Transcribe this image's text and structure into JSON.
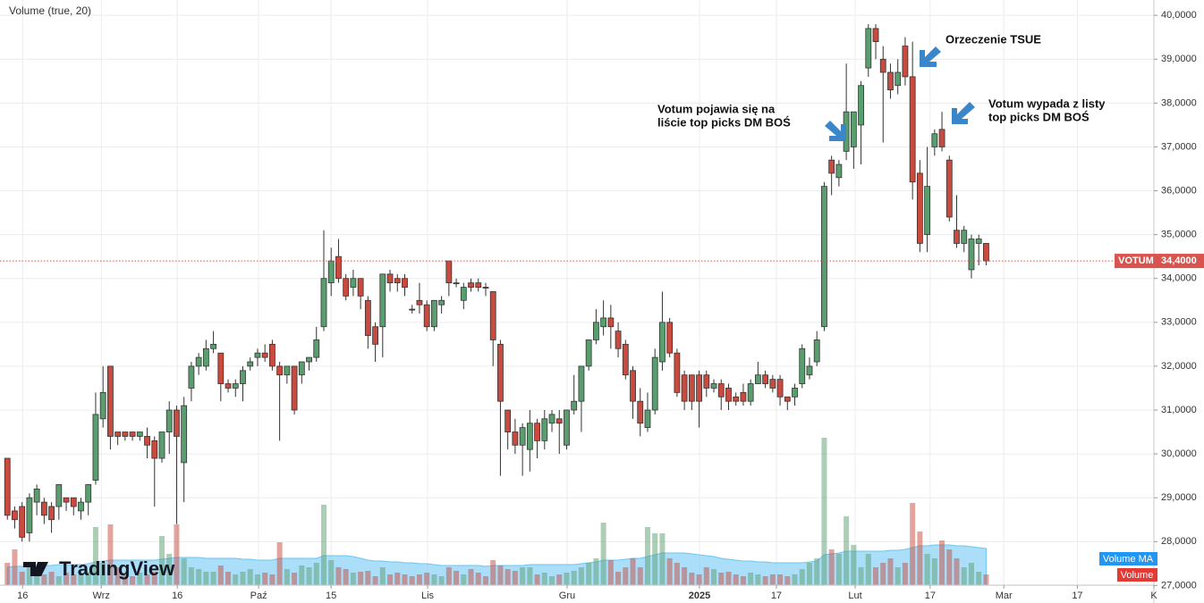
{
  "chart_data": {
    "type": "candlestick",
    "study_label": "Volume (true, 20)",
    "watermark": "TradingView",
    "up_color": "#5a9e70",
    "down_color": "#c94a3e",
    "xlim": [
      -1,
      155.8
    ],
    "xticks": [
      {
        "value": 2.07,
        "label": "16"
      },
      {
        "value": 12.76,
        "label": "Wrz"
      },
      {
        "value": 23.09,
        "label": "16"
      },
      {
        "value": 34.14,
        "label": "Paź"
      },
      {
        "value": 43.99,
        "label": "15"
      },
      {
        "value": 57.1,
        "label": "Lis"
      },
      {
        "value": 76.06,
        "label": "Gru"
      },
      {
        "value": 94.05,
        "label": "2025"
      },
      {
        "value": 104.5,
        "label": "17"
      },
      {
        "value": 115.2,
        "label": "Lut"
      },
      {
        "value": 125.4,
        "label": "17"
      },
      {
        "value": 135.4,
        "label": "Mar"
      },
      {
        "value": 145.4,
        "label": "17"
      },
      {
        "value": 155.8,
        "label": "K"
      }
    ],
    "ylim": [
      26.6,
      40.35
    ],
    "yticks": [
      {
        "value": 27,
        "label": "27,0000"
      },
      {
        "value": 28,
        "label": "28,0000"
      },
      {
        "value": 29,
        "label": "29,0000"
      },
      {
        "value": 30,
        "label": "30,0000"
      },
      {
        "value": 31,
        "label": "31,0000"
      },
      {
        "value": 32,
        "label": "32,0000"
      },
      {
        "value": 33,
        "label": "33,0000"
      },
      {
        "value": 34,
        "label": "34,0000"
      },
      {
        "value": 35,
        "label": "35,0000"
      },
      {
        "value": 36,
        "label": "36,0000"
      },
      {
        "value": 37,
        "label": "37,0000"
      },
      {
        "value": 38,
        "label": "38,0000"
      },
      {
        "value": 39,
        "label": "39,0000"
      },
      {
        "value": 40,
        "label": "40,0000"
      }
    ],
    "grid": true,
    "last_price": {
      "name": "VOTUM",
      "value": 34.4,
      "label": "34,4000",
      "color": "#d9534f"
    },
    "series": [
      {
        "name": "VOTUM",
        "open": [
          29.9,
          28.7,
          28.8,
          28.2,
          28.9,
          28.9,
          28.8,
          28.8,
          29.0,
          29.0,
          28.7,
          28.9,
          29.4,
          30.8,
          32.0,
          30.5,
          30.5,
          30.5,
          30.4,
          30.4,
          30.3,
          29.9,
          30.5,
          31.0,
          29.8,
          31.5,
          32.0,
          32.0,
          32.4,
          32.3,
          31.6,
          31.5,
          31.6,
          32.0,
          32.2,
          32.3,
          32.5,
          32.0,
          31.8,
          32.0,
          31.8,
          32.1,
          32.2,
          32.9,
          33.9,
          34.5,
          34.0,
          33.8,
          34.0,
          33.5,
          32.9,
          32.9,
          34.1,
          34.0,
          34.0,
          33.3,
          33.5,
          33.4,
          32.9,
          33.4,
          34.4,
          33.9,
          33.5,
          33.9,
          33.9,
          33.8,
          33.7,
          32.5,
          31.0,
          30.5,
          30.2,
          30.1,
          30.7,
          30.3,
          30.7,
          30.8,
          30.2,
          31.0,
          31.2,
          32.0,
          32.6,
          32.9,
          33.1,
          32.8,
          32.5,
          31.9,
          31.2,
          30.6,
          31.0,
          32.1,
          33.0,
          32.3,
          31.8,
          31.8,
          31.8,
          31.8,
          31.5,
          31.6,
          31.5,
          31.3,
          31.4,
          31.2,
          31.6,
          31.8,
          31.7,
          31.7,
          31.3,
          31.3,
          31.6,
          31.8,
          32.1,
          32.9,
          36.7,
          36.3,
          36.9,
          37.0,
          37.5,
          38.8,
          39.7,
          39.0,
          38.7,
          38.4,
          39.3,
          38.6,
          36.4,
          35.0,
          37.0,
          37.4,
          36.7,
          35.1,
          34.8,
          34.2,
          34.8,
          34.8
        ],
        "high": [
          29.9,
          28.8,
          28.9,
          29.1,
          29.3,
          29.0,
          28.9,
          29.3,
          29.0,
          29.0,
          29.0,
          29.3,
          31.4,
          32.0,
          32.0,
          30.5,
          30.5,
          30.5,
          30.5,
          30.6,
          30.4,
          30.5,
          31.2,
          31.1,
          31.3,
          32.1,
          32.3,
          32.6,
          32.8,
          32.3,
          31.7,
          31.7,
          32.0,
          32.2,
          32.4,
          32.5,
          32.6,
          32.1,
          32.0,
          32.0,
          32.1,
          32.2,
          32.9,
          35.1,
          34.7,
          34.9,
          34.1,
          34.2,
          34.0,
          33.6,
          33.0,
          34.1,
          34.2,
          34.1,
          34.1,
          33.4,
          33.9,
          33.5,
          33.5,
          33.6,
          34.4,
          34.0,
          33.9,
          34.0,
          34.0,
          33.9,
          33.7,
          32.6,
          31.0,
          30.8,
          30.7,
          31.0,
          30.8,
          31.0,
          31.0,
          31.0,
          31.0,
          31.8,
          32.0,
          32.6,
          33.3,
          33.5,
          33.4,
          33.0,
          32.6,
          32.0,
          31.5,
          31.4,
          32.4,
          33.7,
          33.1,
          32.4,
          31.9,
          31.8,
          31.9,
          31.9,
          31.7,
          31.7,
          31.6,
          31.4,
          31.6,
          31.7,
          32.1,
          31.9,
          31.8,
          31.8,
          31.3,
          31.6,
          32.5,
          32.2,
          32.8,
          36.2,
          36.8,
          36.7,
          38.9,
          37.8,
          38.5,
          39.8,
          39.8,
          39.3,
          38.9,
          39.0,
          39.5,
          39.4,
          36.7,
          37.0,
          37.4,
          37.8,
          36.8,
          35.9,
          35.2,
          35.0,
          35.0,
          34.8
        ],
        "low": [
          28.5,
          28.3,
          28.0,
          28.0,
          28.6,
          28.4,
          28.2,
          28.5,
          28.7,
          28.6,
          28.5,
          28.6,
          29.3,
          30.6,
          30.1,
          30.2,
          30.3,
          30.3,
          30.3,
          29.9,
          28.8,
          29.8,
          30.0,
          28.4,
          28.9,
          31.2,
          31.8,
          31.9,
          32.3,
          31.2,
          31.4,
          31.3,
          31.2,
          31.9,
          32.0,
          32.1,
          31.9,
          30.3,
          31.6,
          30.9,
          31.6,
          31.9,
          32.1,
          32.8,
          33.6,
          33.9,
          33.5,
          33.6,
          33.3,
          32.4,
          32.1,
          32.2,
          33.7,
          33.7,
          33.6,
          33.2,
          33.2,
          32.8,
          32.8,
          33.2,
          33.6,
          33.8,
          33.3,
          33.7,
          33.7,
          33.6,
          32.0,
          29.5,
          30.1,
          30.0,
          29.5,
          29.6,
          29.9,
          30.1,
          30.5,
          30.0,
          30.1,
          30.9,
          30.5,
          31.9,
          32.5,
          32.7,
          32.4,
          32.2,
          31.7,
          30.8,
          30.4,
          30.5,
          30.9,
          31.9,
          32.2,
          31.3,
          31.0,
          31.0,
          30.6,
          31.3,
          31.4,
          31.0,
          31.0,
          31.1,
          31.1,
          31.1,
          31.6,
          31.5,
          31.4,
          31.1,
          31.0,
          31.1,
          31.5,
          31.7,
          32.0,
          32.8,
          35.9,
          36.1,
          36.7,
          36.5,
          36.6,
          38.6,
          39.0,
          37.1,
          38.1,
          38.2,
          38.4,
          35.8,
          34.6,
          34.6,
          36.8,
          36.9,
          35.3,
          34.7,
          34.6,
          34.0,
          34.3,
          34.3
        ],
        "close": [
          28.6,
          28.5,
          28.1,
          29.0,
          29.2,
          28.6,
          28.5,
          29.3,
          28.9,
          28.8,
          28.9,
          29.3,
          30.9,
          31.4,
          30.4,
          30.4,
          30.4,
          30.4,
          30.5,
          30.2,
          29.9,
          30.5,
          31.0,
          30.4,
          31.1,
          32.0,
          32.2,
          32.4,
          32.5,
          31.6,
          31.5,
          31.6,
          31.9,
          32.1,
          32.3,
          32.2,
          32.0,
          31.8,
          32.0,
          31.0,
          32.1,
          32.2,
          32.6,
          34.0,
          34.4,
          34.0,
          33.6,
          34.0,
          33.6,
          32.7,
          32.5,
          34.1,
          33.9,
          33.9,
          33.8,
          33.3,
          33.4,
          32.9,
          33.5,
          33.5,
          33.9,
          33.9,
          33.8,
          33.8,
          33.8,
          33.8,
          32.6,
          31.2,
          30.5,
          30.2,
          30.6,
          30.7,
          30.3,
          30.8,
          30.9,
          30.7,
          31.0,
          31.2,
          32.0,
          32.6,
          33.0,
          33.1,
          32.9,
          32.4,
          31.8,
          31.2,
          30.7,
          31.0,
          32.2,
          33.0,
          32.3,
          31.4,
          31.2,
          31.2,
          31.2,
          31.5,
          31.6,
          31.3,
          31.2,
          31.2,
          31.2,
          31.6,
          31.8,
          31.6,
          31.5,
          31.3,
          31.2,
          31.5,
          32.4,
          32.0,
          32.6,
          36.1,
          36.4,
          36.6,
          37.8,
          37.8,
          38.4,
          39.7,
          39.4,
          38.7,
          38.3,
          38.7,
          38.6,
          36.2,
          34.8,
          36.1,
          37.3,
          37.0,
          35.4,
          34.8,
          35.1,
          34.9,
          34.9,
          34.4
        ]
      }
    ],
    "volume": {
      "name": "Volume",
      "color": "#e53935",
      "vlim": [
        0,
        175
      ],
      "values": [
        25,
        40,
        15,
        20,
        18,
        12,
        15,
        10,
        14,
        12,
        12,
        15,
        65,
        25,
        68,
        20,
        12,
        10,
        14,
        12,
        15,
        55,
        35,
        68,
        30,
        20,
        18,
        15,
        15,
        22,
        15,
        12,
        15,
        18,
        12,
        14,
        12,
        48,
        18,
        14,
        22,
        20,
        25,
        90,
        28,
        20,
        18,
        14,
        15,
        16,
        10,
        20,
        12,
        14,
        12,
        10,
        12,
        14,
        12,
        10,
        20,
        16,
        12,
        18,
        14,
        10,
        28,
        22,
        18,
        16,
        20,
        20,
        12,
        14,
        10,
        12,
        14,
        16,
        20,
        25,
        30,
        70,
        28,
        15,
        20,
        30,
        20,
        65,
        58,
        58,
        30,
        25,
        20,
        14,
        12,
        20,
        18,
        14,
        15,
        12,
        10,
        14,
        12,
        10,
        12,
        12,
        10,
        12,
        18,
        25,
        30,
        165,
        40,
        35,
        77,
        45,
        20,
        35,
        20,
        25,
        30,
        20,
        25,
        92,
        60,
        35,
        30,
        50,
        40,
        30,
        20,
        25,
        15,
        12
      ]
    },
    "volume_ma": {
      "name": "Volume MA",
      "color": "#2196f3",
      "values": [
        20,
        21,
        21,
        22,
        22,
        22,
        22,
        23,
        23,
        23,
        23,
        24,
        26,
        27,
        28,
        28,
        28,
        28,
        28,
        28,
        28,
        29,
        30,
        31,
        31,
        31,
        31,
        30,
        30,
        30,
        30,
        30,
        29,
        29,
        28,
        28,
        28,
        30,
        30,
        30,
        30,
        30,
        30,
        33,
        33,
        33,
        33,
        32,
        30,
        28,
        27,
        27,
        26,
        26,
        25,
        25,
        24,
        24,
        23,
        22,
        22,
        22,
        22,
        22,
        22,
        21,
        22,
        22,
        22,
        22,
        22,
        23,
        23,
        23,
        23,
        23,
        23,
        23,
        24,
        25,
        26,
        28,
        28,
        28,
        29,
        30,
        30,
        32,
        34,
        36,
        36,
        36,
        36,
        35,
        34,
        33,
        32,
        30,
        29,
        28,
        27,
        27,
        26,
        26,
        25,
        25,
        25,
        25,
        25,
        26,
        27,
        34,
        35,
        36,
        38,
        38,
        38,
        38,
        38,
        38,
        39,
        39,
        40,
        42,
        44,
        44,
        45,
        45,
        45,
        44,
        44,
        43,
        42,
        41
      ]
    },
    "annotations": [
      {
        "lines": [
          "Orzeczenie TSUE"
        ]
      },
      {
        "lines": [
          "Votum pojawia się na",
          "liście top picks DM BOŚ"
        ]
      },
      {
        "lines": [
          "Votum wypada z listy",
          "top picks DM BOŚ"
        ]
      }
    ]
  }
}
